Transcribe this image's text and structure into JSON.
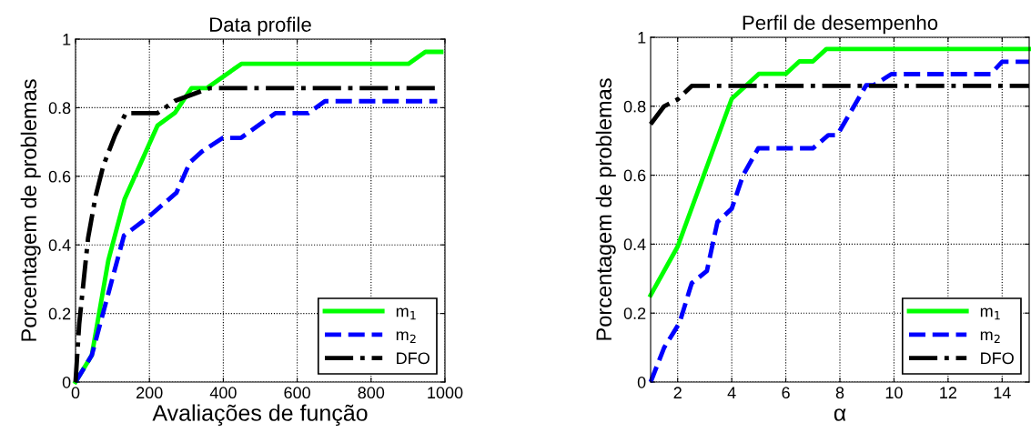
{
  "chart_data": [
    {
      "type": "line",
      "title": "Data profile",
      "xlabel": "Avaliações de função",
      "ylabel": "Porcentagem de problemas",
      "xlim": [
        0,
        1000
      ],
      "ylim": [
        0,
        1
      ],
      "xticks": [
        0,
        200,
        400,
        600,
        800,
        1000
      ],
      "yticks": [
        0,
        0.2,
        0.4,
        0.6,
        0.8,
        1
      ],
      "grid": true,
      "legend": "bottom right",
      "series": [
        {
          "name": "m$_{1}$",
          "color": "#00ff00",
          "line_style": "solid",
          "x": [
            0,
            44,
            89,
            133,
            222,
            269,
            314,
            355,
            449,
            901,
            947,
            990
          ],
          "values": [
            0,
            0.078,
            0.356,
            0.534,
            0.748,
            0.785,
            0.857,
            0.857,
            0.928,
            0.928,
            0.963,
            0.963
          ]
        },
        {
          "name": "m$_{2}$",
          "color": "#0000ff",
          "line_style": "dashed",
          "x": [
            0,
            44,
            71,
            131,
            196,
            273,
            310,
            342,
            399,
            448,
            541,
            630,
            675,
            979
          ],
          "values": [
            0,
            0.078,
            0.187,
            0.427,
            0.48,
            0.552,
            0.641,
            0.672,
            0.712,
            0.712,
            0.784,
            0.784,
            0.819,
            0.819
          ]
        },
        {
          "name": "DFO",
          "color": "#000000",
          "line_style": "dashdot",
          "x": [
            0,
            10,
            34,
            54,
            75,
            107,
            136,
            221,
            269,
            363,
            975
          ],
          "values": [
            0,
            0.17,
            0.42,
            0.54,
            0.63,
            0.72,
            0.784,
            0.784,
            0.82,
            0.857,
            0.857
          ]
        }
      ]
    },
    {
      "type": "line",
      "title": "Perfil de desempenho",
      "xlabel": "α",
      "ylabel": "Porcentagem de problemas",
      "xlim": [
        1,
        15
      ],
      "ylim": [
        0,
        1
      ],
      "xticks": [
        2,
        4,
        6,
        8,
        10,
        12,
        14
      ],
      "yticks": [
        0,
        0.2,
        0.4,
        0.6,
        0.8,
        1
      ],
      "grid": true,
      "legend": "bottom right",
      "series": [
        {
          "name": "m$_{1}$",
          "color": "#00ff00",
          "line_style": "solid",
          "x": [
            1,
            2,
            4,
            5,
            6,
            6.5,
            7,
            7.5,
            15
          ],
          "values": [
            0.252,
            0.393,
            0.822,
            0.894,
            0.894,
            0.93,
            0.93,
            0.966,
            0.966
          ]
        },
        {
          "name": "m$_{2}$",
          "color": "#0000ff",
          "line_style": "dashed",
          "x": [
            1,
            1.5,
            2.07,
            2.52,
            3.08,
            3.47,
            4,
            4.42,
            4.98,
            7,
            7.57,
            7.9,
            8.97,
            9.25,
            9.9,
            13.57,
            14,
            15
          ],
          "values": [
            0,
            0.1,
            0.172,
            0.287,
            0.322,
            0.464,
            0.503,
            0.6,
            0.678,
            0.678,
            0.716,
            0.716,
            0.861,
            0.861,
            0.893,
            0.893,
            0.929,
            0.929
          ]
        },
        {
          "name": "DFO",
          "color": "#000000",
          "line_style": "dashdot",
          "x": [
            1,
            1.5,
            2,
            2.52,
            15
          ],
          "values": [
            0.748,
            0.8,
            0.82,
            0.859,
            0.859
          ]
        }
      ]
    }
  ]
}
